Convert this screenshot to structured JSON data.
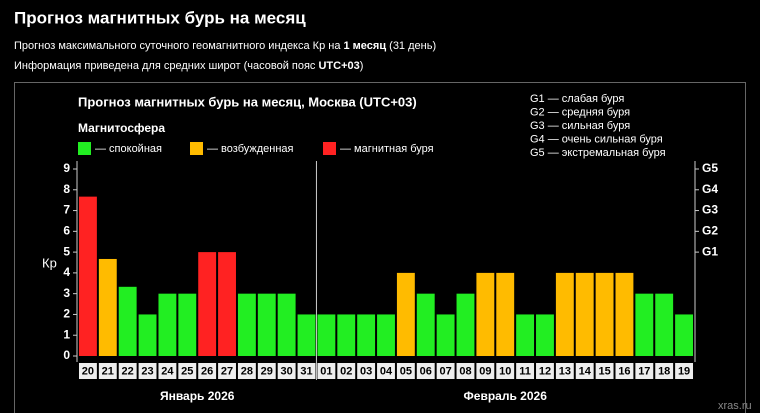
{
  "header": {
    "title": "Прогноз магнитных бурь на месяц",
    "line1": [
      "Прогноз максимального суточного геомагнитного индекса Кр на ",
      "1 месяц",
      " (31 день)"
    ],
    "line2": [
      "Информация приведена для средних широт (часовой пояс ",
      "UTC+03",
      ")"
    ]
  },
  "chart_data": {
    "type": "bar",
    "title": "Прогноз магнитных бурь на месяц, Москва (UTC+03)",
    "legend_title": "Магнитосфера",
    "legend": [
      {
        "label": "— спокойная",
        "color": "#22ee22"
      },
      {
        "label": "— возбужденная",
        "color": "#ffbb00"
      },
      {
        "label": "— магнитная буря",
        "color": "#ff2222"
      }
    ],
    "g_scale": [
      "G1 — слабая буря",
      "G2 — средняя буря",
      "G3 — сильная буря",
      "G4 — очень сильная буря",
      "G5 — экстремальная буря"
    ],
    "y_label": "Кр",
    "months": [
      "Январь 2026",
      "Февраль 2026"
    ],
    "categories": [
      "20",
      "21",
      "22",
      "23",
      "24",
      "25",
      "26",
      "27",
      "28",
      "29",
      "30",
      "31",
      "01",
      "02",
      "03",
      "04",
      "05",
      "06",
      "07",
      "08",
      "09",
      "10",
      "11",
      "12",
      "13",
      "14",
      "15",
      "16",
      "17",
      "18",
      "19"
    ],
    "values": [
      7.67,
      4.67,
      3.33,
      2,
      3,
      3,
      5,
      5,
      3,
      3,
      3,
      2,
      2,
      2,
      2,
      2,
      4,
      3,
      2,
      3,
      4,
      4,
      2,
      2,
      4,
      4,
      4,
      4,
      3,
      3,
      2
    ],
    "colors": [
      "#ff2222",
      "#ffbb00",
      "#22ee22",
      "#22ee22",
      "#22ee22",
      "#22ee22",
      "#ff2222",
      "#ff2222",
      "#22ee22",
      "#22ee22",
      "#22ee22",
      "#22ee22",
      "#22ee22",
      "#22ee22",
      "#22ee22",
      "#22ee22",
      "#ffbb00",
      "#22ee22",
      "#22ee22",
      "#22ee22",
      "#ffbb00",
      "#ffbb00",
      "#22ee22",
      "#22ee22",
      "#ffbb00",
      "#ffbb00",
      "#ffbb00",
      "#ffbb00",
      "#22ee22",
      "#22ee22",
      "#22ee22"
    ],
    "ylim": [
      0,
      9
    ],
    "yticks": [
      0,
      1,
      2,
      3,
      4,
      5,
      6,
      7,
      8,
      9
    ],
    "y2lim": [
      0,
      9
    ],
    "y2ticks": [
      {
        "value": 5,
        "label": "G1"
      },
      {
        "value": 6,
        "label": "G2"
      },
      {
        "value": 7,
        "label": "G3"
      },
      {
        "value": 8,
        "label": "G4"
      },
      {
        "value": 9,
        "label": "G5"
      }
    ]
  },
  "watermark": "xras.ru"
}
